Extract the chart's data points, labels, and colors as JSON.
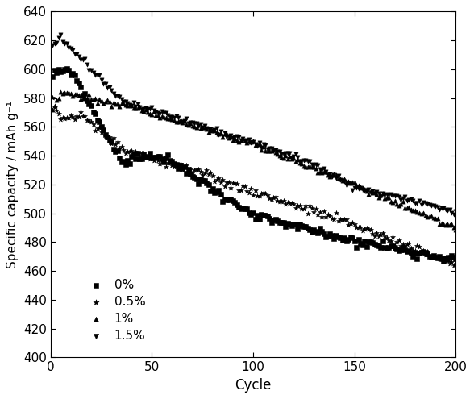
{
  "title": "",
  "xlabel": "Cycle",
  "ylabel": "Specific capacity / mAh g⁻¹",
  "xlim": [
    0,
    200
  ],
  "ylim": [
    400,
    640
  ],
  "yticks": [
    400,
    420,
    440,
    460,
    480,
    500,
    520,
    540,
    560,
    580,
    600,
    620,
    640
  ],
  "xticks": [
    0,
    50,
    100,
    150,
    200
  ],
  "figsize": [
    5.88,
    4.95
  ],
  "dpi": 100,
  "series": [
    {
      "label": "0%",
      "marker": "s",
      "ms": 14
    },
    {
      "label": "0.5%",
      "marker": "*",
      "ms": 20
    },
    {
      "label": "1%",
      "marker": "^",
      "ms": 14
    },
    {
      "label": "1.5%",
      "marker": "v",
      "ms": 14
    }
  ]
}
